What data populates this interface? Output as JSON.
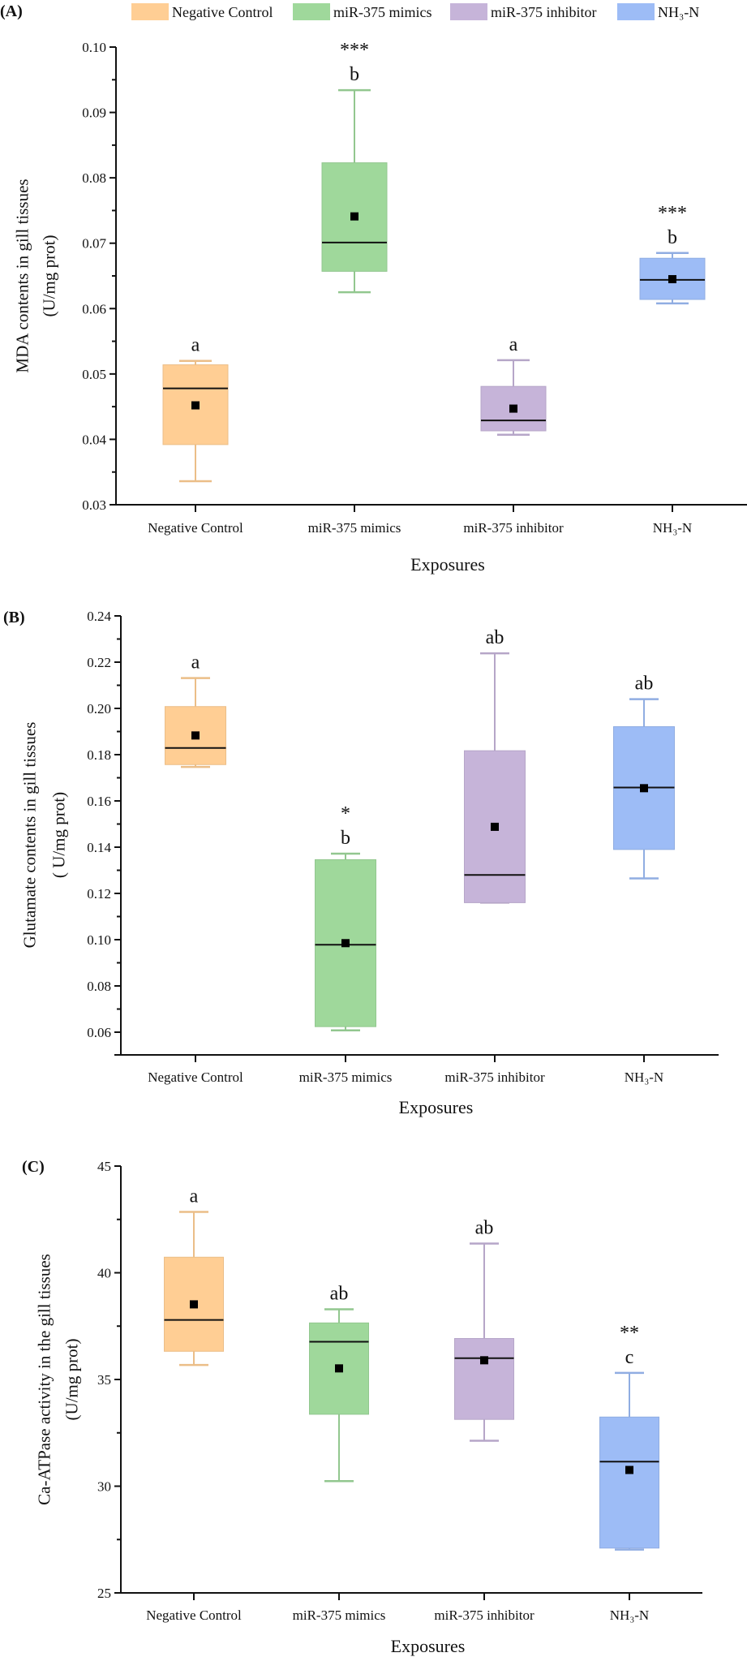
{
  "legend": {
    "items": [
      {
        "label": "Negative Control",
        "color": "#FFCE94"
      },
      {
        "label": "miR-375 mimics",
        "color": "#9FD89B"
      },
      {
        "label": "miR-375 inhibitor",
        "color": "#C6B4D9"
      },
      {
        "label": "NH₃-N",
        "color": "#9DBCF6"
      }
    ]
  },
  "chart_data": [
    {
      "type": "box",
      "panel_label": "(A)",
      "ylabel": [
        "MDA contents in gill tissues",
        "(U/mg prot)"
      ],
      "xlabel": "Exposures",
      "ylim": [
        0.03,
        0.1
      ],
      "yticks": [
        "0.03",
        "0.04",
        "0.05",
        "0.06",
        "0.07",
        "0.08",
        "0.09",
        "0.10"
      ],
      "minor_ticks": true,
      "grid": false,
      "legend_position": "top",
      "categories": [
        "Negative Control",
        "miR-375 mimics",
        "miR-375 inhibitor",
        "NH₃-N"
      ],
      "series": [
        {
          "category": "Negative Control",
          "min": 0.0336,
          "q1": 0.0392,
          "median": 0.0478,
          "mean": 0.0452,
          "q3": 0.0514,
          "max": 0.052,
          "letter": "a",
          "stars": ""
        },
        {
          "category": "miR-375 mimics",
          "min": 0.0625,
          "q1": 0.0657,
          "median": 0.0701,
          "mean": 0.0741,
          "q3": 0.0823,
          "max": 0.0934,
          "letter": "b",
          "stars": "***"
        },
        {
          "category": "miR-375 inhibitor",
          "min": 0.0407,
          "q1": 0.0413,
          "median": 0.0429,
          "mean": 0.0447,
          "q3": 0.0481,
          "max": 0.0521,
          "letter": "a",
          "stars": ""
        },
        {
          "category": "NH₃-N",
          "min": 0.0608,
          "q1": 0.0614,
          "median": 0.0644,
          "mean": 0.0645,
          "q3": 0.0677,
          "max": 0.0685,
          "letter": "b",
          "stars": "***"
        }
      ]
    },
    {
      "type": "box",
      "panel_label": "(B)",
      "ylabel": [
        "Glutamate contents in gill tissues",
        "( U/mg prot)"
      ],
      "xlabel": "Exposures",
      "ylim": [
        0.05,
        0.24
      ],
      "yticks": [
        "0.06",
        "0.08",
        "0.10",
        "0.12",
        "0.14",
        "0.16",
        "0.18",
        "0.20",
        "0.22",
        "0.24"
      ],
      "minor_ticks": true,
      "grid": false,
      "categories": [
        "Negative Control",
        "miR-375 mimics",
        "miR-375 inhibitor",
        "NH₃-N"
      ],
      "series": [
        {
          "category": "Negative Control",
          "min": 0.1747,
          "q1": 0.1757,
          "median": 0.1829,
          "mean": 0.1883,
          "q3": 0.2008,
          "max": 0.2131,
          "letter": "a",
          "stars": ""
        },
        {
          "category": "miR-375 mimics",
          "min": 0.0608,
          "q1": 0.0624,
          "median": 0.0978,
          "mean": 0.0985,
          "q3": 0.1346,
          "max": 0.1372,
          "letter": "b",
          "stars": "*"
        },
        {
          "category": "miR-375 inhibitor",
          "min": 0.116,
          "q1": 0.116,
          "median": 0.128,
          "mean": 0.1488,
          "q3": 0.1817,
          "max": 0.2238,
          "letter": "ab",
          "stars": ""
        },
        {
          "category": "NH₃-N",
          "min": 0.1265,
          "q1": 0.139,
          "median": 0.1658,
          "mean": 0.1655,
          "q3": 0.1921,
          "max": 0.204,
          "letter": "ab",
          "stars": ""
        }
      ]
    },
    {
      "type": "box",
      "panel_label": "(C)",
      "ylabel": [
        "Ca-ATPase activity in the gill tissues",
        "(U/mg prot)"
      ],
      "xlabel": "Exposures",
      "ylim": [
        25,
        45
      ],
      "yticks": [
        "25",
        "30",
        "35",
        "40",
        "45"
      ],
      "minor_ticks": true,
      "grid": false,
      "categories": [
        "Negative Control",
        "miR-375 mimics",
        "miR-375 inhibitor",
        "NH₃-N"
      ],
      "series": [
        {
          "category": "Negative Control",
          "min": 35.68,
          "q1": 36.32,
          "median": 37.79,
          "mean": 38.52,
          "q3": 40.73,
          "max": 42.85,
          "letter": "a",
          "stars": ""
        },
        {
          "category": "miR-375 mimics",
          "min": 30.24,
          "q1": 33.37,
          "median": 36.77,
          "mean": 35.52,
          "q3": 37.65,
          "max": 38.29,
          "letter": "ab",
          "stars": ""
        },
        {
          "category": "miR-375 inhibitor",
          "min": 32.13,
          "q1": 33.13,
          "median": 36.0,
          "mean": 35.9,
          "q3": 36.92,
          "max": 41.37,
          "letter": "ab",
          "stars": ""
        },
        {
          "category": "NH₃-N",
          "min": 27.03,
          "q1": 27.1,
          "median": 31.15,
          "mean": 30.76,
          "q3": 33.24,
          "max": 35.31,
          "letter": "c",
          "stars": "**"
        }
      ]
    }
  ]
}
